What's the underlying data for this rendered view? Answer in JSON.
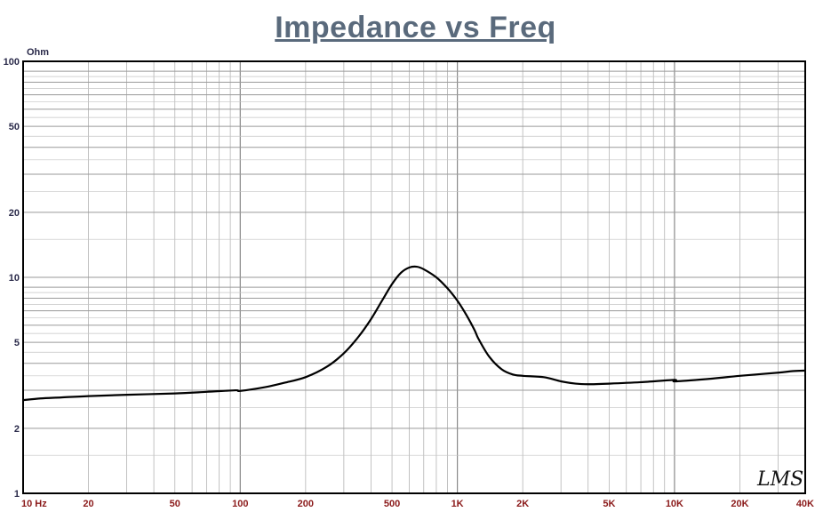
{
  "chart_data": {
    "type": "line",
    "title": "Impedance vs Freq",
    "ylabel": "Ohm",
    "x_scale": "log",
    "y_scale": "log",
    "xlim": [
      10,
      40000
    ],
    "ylim": [
      1,
      100
    ],
    "grid": true,
    "x_ticks": [
      {
        "value": 10,
        "label": "10  Hz"
      },
      {
        "value": 20,
        "label": "20"
      },
      {
        "value": 50,
        "label": "50"
      },
      {
        "value": 100,
        "label": "100"
      },
      {
        "value": 200,
        "label": "200"
      },
      {
        "value": 500,
        "label": "500"
      },
      {
        "value": 1000,
        "label": "1K"
      },
      {
        "value": 2000,
        "label": "2K"
      },
      {
        "value": 5000,
        "label": "5K"
      },
      {
        "value": 10000,
        "label": "10K"
      },
      {
        "value": 20000,
        "label": "20K"
      },
      {
        "value": 40000,
        "label": "40K"
      }
    ],
    "y_ticks": [
      {
        "value": 100,
        "label": "100"
      },
      {
        "value": 50,
        "label": "50"
      },
      {
        "value": 20,
        "label": "20"
      },
      {
        "value": 10,
        "label": "10"
      },
      {
        "value": 5,
        "label": "5"
      },
      {
        "value": 2,
        "label": "2"
      },
      {
        "value": 1,
        "label": "1"
      }
    ],
    "series": [
      {
        "color": "#000000",
        "x": [
          10,
          12,
          15,
          20,
          30,
          50,
          70,
          95,
          100,
          130,
          160,
          200,
          250,
          300,
          350,
          400,
          450,
          500,
          550,
          600,
          650,
          700,
          800,
          900,
          1000,
          1100,
          1200,
          1250,
          1400,
          1600,
          1800,
          2000,
          2500,
          3000,
          3500,
          4000,
          5000,
          7000,
          10000,
          10100,
          15000,
          20000,
          30000,
          35000,
          40000
        ],
        "y": [
          2.7,
          2.75,
          2.78,
          2.82,
          2.86,
          2.9,
          2.95,
          3.0,
          2.98,
          3.1,
          3.25,
          3.45,
          3.85,
          4.45,
          5.3,
          6.4,
          7.8,
          9.3,
          10.5,
          11.1,
          11.2,
          10.9,
          10.0,
          8.9,
          7.8,
          6.7,
          5.7,
          5.2,
          4.3,
          3.75,
          3.55,
          3.5,
          3.45,
          3.3,
          3.22,
          3.2,
          3.22,
          3.27,
          3.35,
          3.3,
          3.4,
          3.5,
          3.62,
          3.68,
          3.7
        ]
      }
    ]
  },
  "logo_text": "LMS"
}
